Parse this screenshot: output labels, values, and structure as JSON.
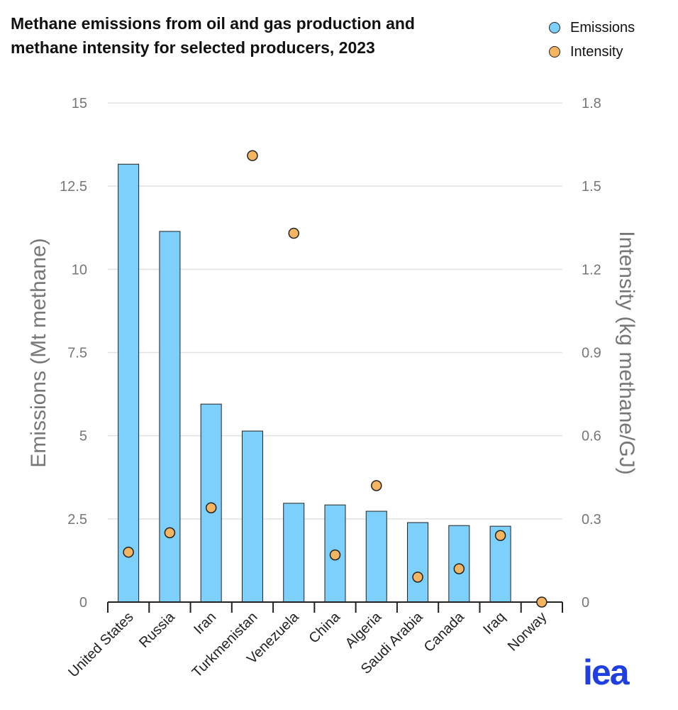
{
  "title": "Methane emissions from oil and gas production and methane intensity for selected producers, 2023",
  "title_lines": [
    "Methane emissions from oil and gas production and",
    "methane intensity for selected producers, 2023"
  ],
  "legend": [
    {
      "name": "Emissions",
      "color": "#7dd0fb"
    },
    {
      "name": "Intensity",
      "color": "#f3b562"
    }
  ],
  "logo": "iea",
  "chart_data": {
    "type": "bar",
    "categories": [
      "United States",
      "Russia",
      "Iran",
      "Turkmenistan",
      "Venezuela",
      "China",
      "Algeria",
      "Saudi Arabia",
      "Canada",
      "Iraq",
      "Norway"
    ],
    "series": [
      {
        "name": "Emissions",
        "type": "bar",
        "axis": "left",
        "values": [
          13.16,
          11.14,
          5.95,
          5.14,
          2.97,
          2.92,
          2.73,
          2.39,
          2.3,
          2.28,
          0
        ]
      },
      {
        "name": "Intensity",
        "type": "scatter",
        "axis": "right",
        "values": [
          0.18,
          0.25,
          0.34,
          1.61,
          1.33,
          0.17,
          0.42,
          0.09,
          0.12,
          0.24,
          0
        ]
      }
    ],
    "ylabel": "Emissions (Mt methane)",
    "y2label": "Intensity (kg methane/GJ)",
    "ylim": [
      0,
      15
    ],
    "y2lim": [
      0,
      1.8
    ],
    "yticks": [
      "0",
      "2.5",
      "5",
      "7.5",
      "10",
      "12.5",
      "15"
    ],
    "y2ticks": [
      "0",
      "0.3",
      "0.6",
      "0.9",
      "1.2",
      "1.5",
      "1.8"
    ],
    "grid": true,
    "legend_position": "top-right"
  }
}
